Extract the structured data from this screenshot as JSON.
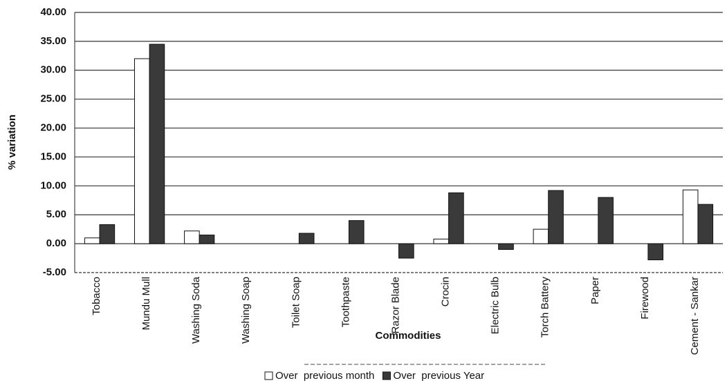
{
  "chart_data": {
    "type": "bar",
    "y_label": "% variation",
    "x_label": "Commodities",
    "categories": [
      "Tobacco",
      "Mundu Mull",
      "Washing Soda",
      "Washing Soap",
      "Toilet Soap",
      "Toothpaste",
      "Razor Blade",
      "Crocin",
      "Electric Bulb",
      "Torch Battery",
      "Paper",
      "Firewood",
      "Cement - Sankar"
    ],
    "series": [
      {
        "name": "Over  previous month",
        "color": "#ffffff",
        "values": [
          1.0,
          32.0,
          2.2,
          0,
          0,
          0,
          0,
          0.8,
          0,
          2.5,
          0,
          0,
          9.3
        ]
      },
      {
        "name": "Over  previous Year",
        "color": "#3a3a3a",
        "values": [
          3.3,
          34.5,
          1.5,
          0,
          1.8,
          4.0,
          -2.5,
          8.8,
          -1.0,
          9.2,
          8.0,
          -2.8,
          6.8
        ]
      }
    ],
    "ylim": [
      -5,
      40
    ],
    "yticks": [
      {
        "value": -5,
        "label": "-5.00"
      },
      {
        "value": 0,
        "label": "0.00"
      },
      {
        "value": 5,
        "label": "5.00"
      },
      {
        "value": 10,
        "label": "10.00"
      },
      {
        "value": 15,
        "label": "15.00"
      },
      {
        "value": 20,
        "label": "20.00"
      },
      {
        "value": 25,
        "label": "25.00"
      },
      {
        "value": 30,
        "label": "30.00"
      },
      {
        "value": 35,
        "label": "35.00"
      },
      {
        "value": 40,
        "label": "40.00"
      }
    ],
    "grid": true,
    "legend": "bottom"
  }
}
